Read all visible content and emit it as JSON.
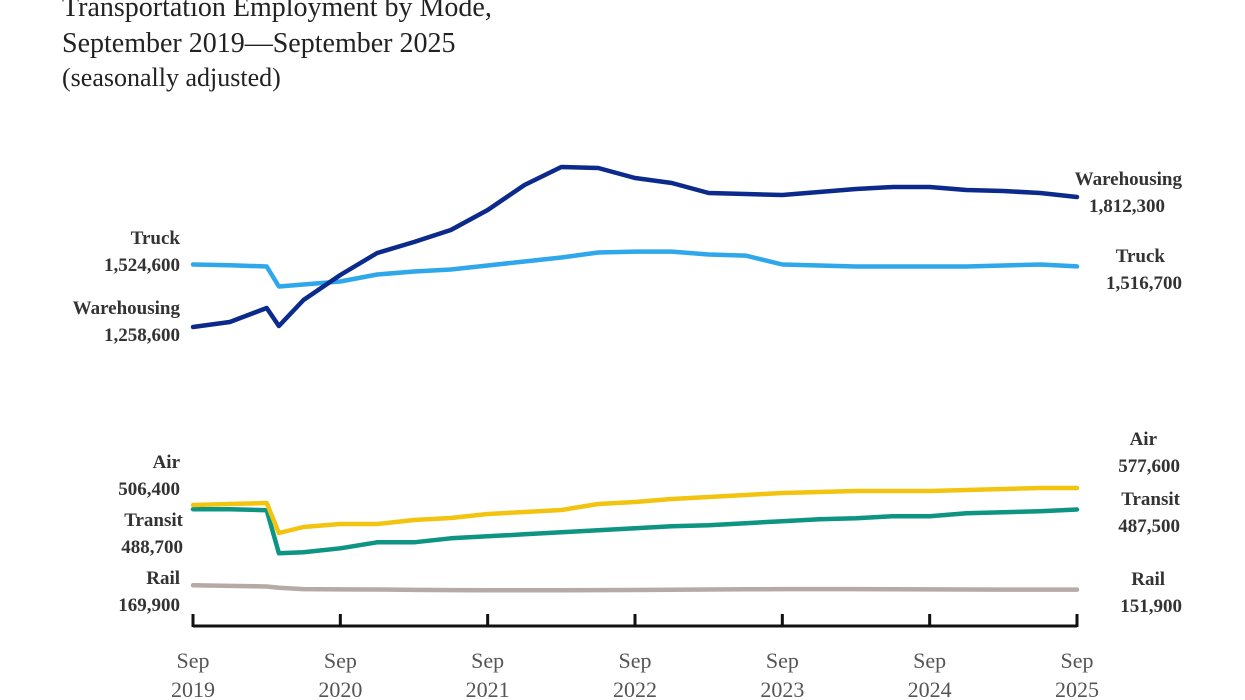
{
  "chart_data": {
    "type": "line",
    "title": "Transportation Employment by Mode,",
    "title_line2": "September 2019—September 2025",
    "subtitle": "(seasonally adjusted)",
    "xlabel": "",
    "ylabel": "",
    "x": [
      "Sep 2019",
      "Dec 2019",
      "Mar 2020",
      "Apr 2020",
      "Jun 2020",
      "Sep 2020",
      "Dec 2020",
      "Mar 2021",
      "Jun 2021",
      "Sep 2021",
      "Dec 2021",
      "Mar 2022",
      "Jun 2022",
      "Sep 2022",
      "Dec 2022",
      "Mar 2023",
      "Jun 2023",
      "Sep 2023",
      "Dec 2023",
      "Mar 2024",
      "Jun 2024",
      "Sep 2024",
      "Dec 2024",
      "Mar 2025",
      "Jun 2025",
      "Sep 2025"
    ],
    "x_months": [
      0,
      3,
      6,
      7,
      9,
      12,
      15,
      18,
      21,
      24,
      27,
      30,
      33,
      36,
      39,
      42,
      45,
      48,
      51,
      54,
      57,
      60,
      63,
      66,
      69,
      72
    ],
    "x_ticks": [
      {
        "top": "Sep",
        "bottom": "2019"
      },
      {
        "top": "Sep",
        "bottom": "2020"
      },
      {
        "top": "Sep",
        "bottom": "2021"
      },
      {
        "top": "Sep",
        "bottom": "2022"
      },
      {
        "top": "Sep",
        "bottom": "2023"
      },
      {
        "top": "Sep",
        "bottom": "2024"
      },
      {
        "top": "Sep",
        "bottom": "2025"
      }
    ],
    "grid": false,
    "series": [
      {
        "name": "Warehousing",
        "color": "#0b2a8c",
        "panel": "upper",
        "start_label": "1,258,600",
        "end_label": "1,812,300",
        "values": [
          1258600,
          1279900,
          1339500,
          1262900,
          1373600,
          1480100,
          1573800,
          1620600,
          1671700,
          1756900,
          1863400,
          1940000,
          1935800,
          1893200,
          1871900,
          1829300,
          1825000,
          1820800,
          1833600,
          1846300,
          1854900,
          1854900,
          1842100,
          1837800,
          1829300,
          1812300
        ]
      },
      {
        "name": "Truck",
        "color": "#2ea8ea",
        "panel": "upper",
        "start_label": "1,524,600",
        "end_label": "1,516,700",
        "values": [
          1524600,
          1522000,
          1516100,
          1430900,
          1439400,
          1452200,
          1482000,
          1494800,
          1503300,
          1520400,
          1537400,
          1554400,
          1575700,
          1579900,
          1579900,
          1567200,
          1562900,
          1524600,
          1520400,
          1516100,
          1516100,
          1516100,
          1516100,
          1520400,
          1524600,
          1516700
        ]
      },
      {
        "name": "Air",
        "color": "#f2c40f",
        "panel": "lower",
        "start_label": "506,400",
        "end_label": "577,600",
        "values": [
          506400,
          510600,
          514800,
          389100,
          414300,
          426900,
          426900,
          443600,
          452000,
          468700,
          477100,
          485500,
          510600,
          519000,
          531500,
          539900,
          548300,
          556700,
          560800,
          565000,
          565000,
          565000,
          569200,
          573400,
          577600,
          577600
        ]
      },
      {
        "name": "Transit",
        "color": "#0e9482",
        "panel": "lower",
        "start_label": "488,700",
        "end_label": "487,500",
        "values": [
          488700,
          488700,
          484500,
          304400,
          308600,
          325100,
          350200,
          350200,
          367000,
          375400,
          383800,
          392200,
          400600,
          409000,
          417400,
          421600,
          430000,
          438400,
          446700,
          450900,
          459300,
          459300,
          471900,
          476100,
          480300,
          487500
        ]
      },
      {
        "name": "Rail",
        "color": "#b5aaa5",
        "panel": "lower",
        "start_label": "169,900",
        "end_label": "151,900",
        "values": [
          169900,
          167500,
          165000,
          160000,
          154000,
          153100,
          152500,
          151000,
          150000,
          149500,
          149000,
          149500,
          150000,
          150500,
          151500,
          152500,
          153500,
          154000,
          154000,
          154000,
          153500,
          153000,
          152500,
          152000,
          152000,
          151900
        ]
      }
    ]
  }
}
